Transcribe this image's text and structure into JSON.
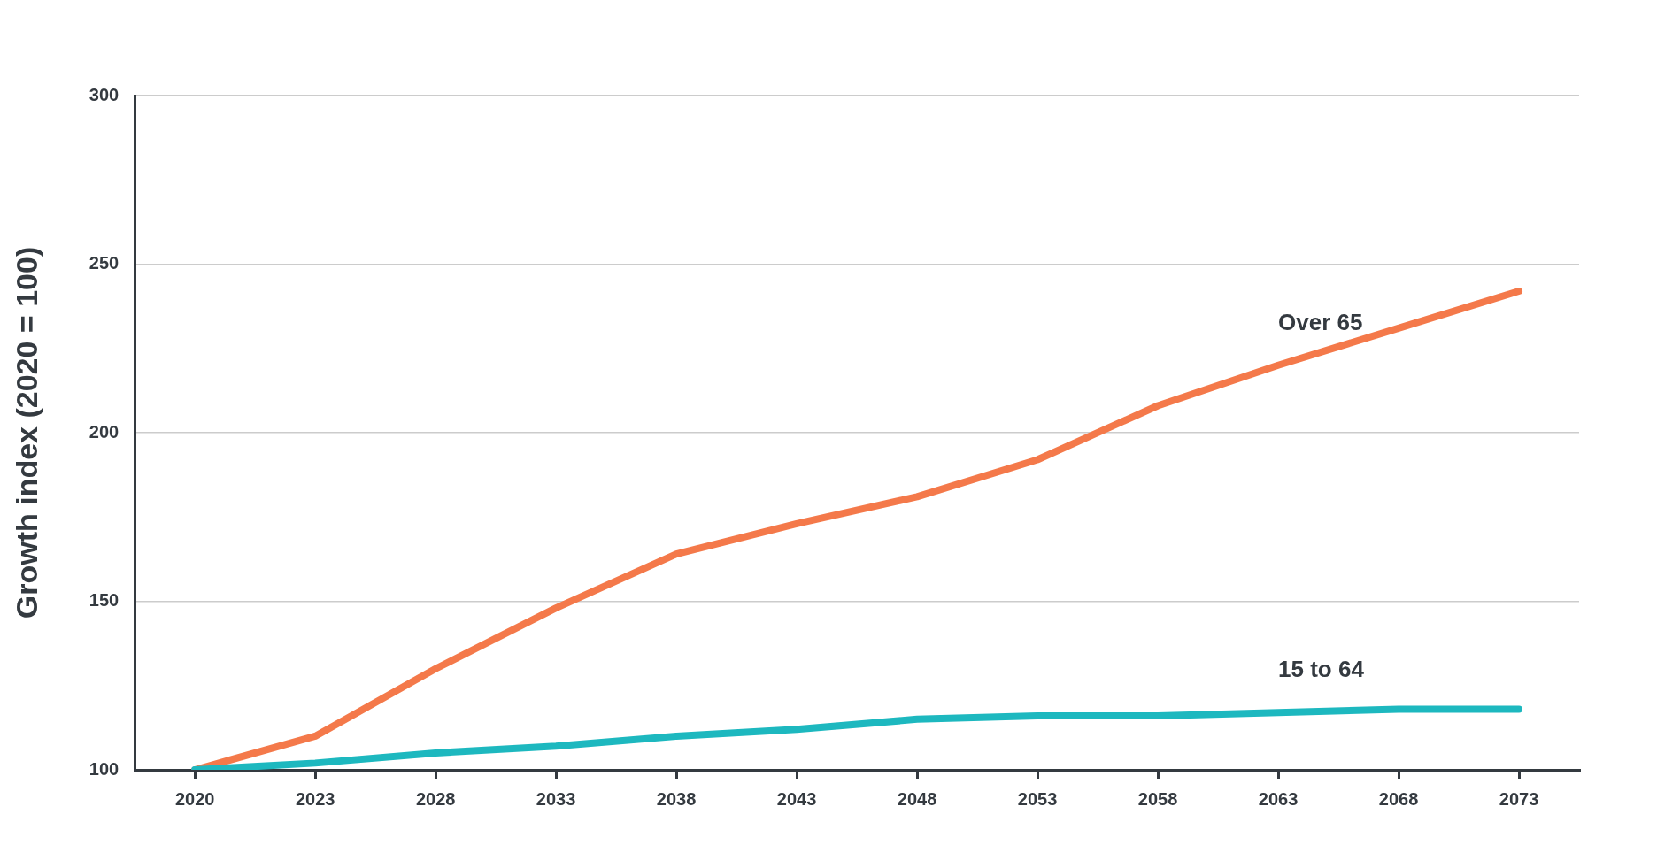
{
  "chart_data": {
    "type": "line",
    "ylabel": "Growth index (2020 = 100)",
    "categories": [
      "2020",
      "2023",
      "2028",
      "2033",
      "2038",
      "2043",
      "2048",
      "2053",
      "2058",
      "2063",
      "2068",
      "2073"
    ],
    "series": [
      {
        "name": "Over 65",
        "color": "#f4794a",
        "values": [
          100,
          110,
          130,
          148,
          164,
          173,
          181,
          192,
          208,
          220,
          231,
          242
        ]
      },
      {
        "name": "15 to 64",
        "color": "#1db8bf",
        "values": [
          100,
          102,
          105,
          107,
          110,
          112,
          115,
          116,
          116,
          117,
          118,
          118
        ]
      }
    ],
    "ylim": [
      100,
      300
    ],
    "yticks": [
      100,
      150,
      200,
      250,
      300
    ],
    "grid": "y",
    "legend": false,
    "marker": "none",
    "line_style": "solid"
  }
}
